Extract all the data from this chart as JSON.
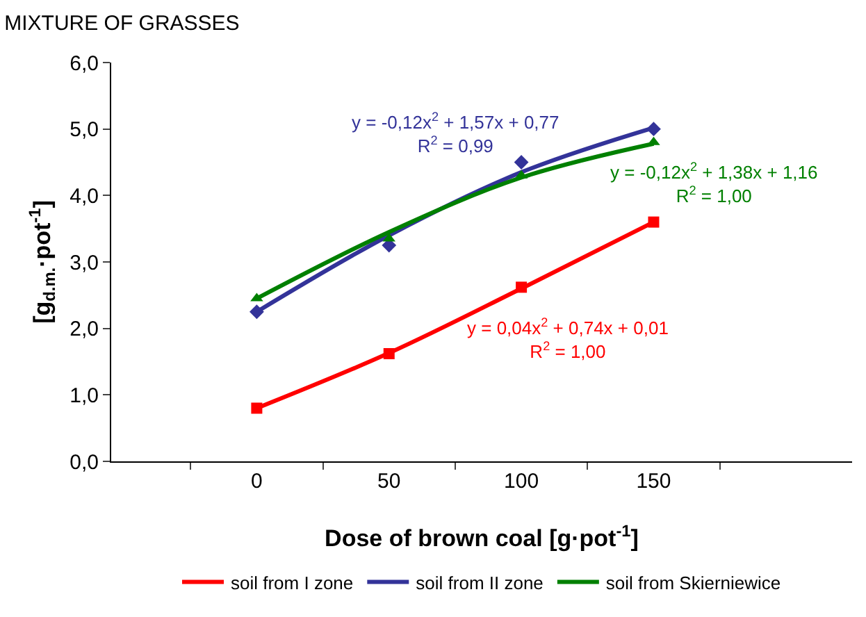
{
  "chart_data": {
    "type": "scatter",
    "title": "MIXTURE OF GRASSES",
    "xlabel": "Dose of brown coal [g·pot$^{-1}$]",
    "ylabel": "[g$_{d.m.}$·pot$^{-1}$]",
    "categories": [
      "0",
      "50",
      "100",
      "150"
    ],
    "series": [
      {
        "color": "#ff0000",
        "marker": "square",
        "values": [
          0.8,
          1.62,
          2.62,
          3.6
        ]
      },
      {
        "color": "#333399",
        "marker": "diamond",
        "values": [
          2.25,
          3.25,
          4.5,
          5.0
        ]
      },
      {
        "color": "#008000",
        "marker": "triangle",
        "values": [
          2.45,
          3.35,
          4.3,
          4.8
        ]
      },
      {
        "type": "line",
        "name": "soil from I zone",
        "color": "#ff0000",
        "marker": "none",
        "values": [
          0.8,
          1.63,
          2.6,
          3.6
        ]
      },
      {
        "type": "line",
        "name": "soil from II zone",
        "color": "#333399",
        "marker": "none",
        "values": [
          2.25,
          3.4,
          4.35,
          5.02
        ]
      },
      {
        "type": "line",
        "name": "soil from Skierniewice",
        "color": "#008000",
        "marker": "none",
        "values": [
          2.45,
          3.45,
          4.27,
          4.78
        ]
      }
    ],
    "ylim": [
      0,
      6
    ],
    "yticks": [
      {
        "value": 0,
        "label": "0,0"
      },
      {
        "value": 1,
        "label": "1,0"
      },
      {
        "value": 2,
        "label": "2,0"
      },
      {
        "value": 3,
        "label": "3,0"
      },
      {
        "value": 4,
        "label": "4,0"
      },
      {
        "value": 5,
        "label": "5,0"
      },
      {
        "value": 6,
        "label": "6,0"
      }
    ],
    "annotations": [
      "y = -0,12x$^{2}$ + 1,57x + 0,77\nR$^{2}$ = 0,99",
      "y = -0,12x$^{2}$ + 1,38x + 1,16\nR$^{2}$ = 1,00",
      "y = 0,04x$^{2}$ + 0,74x + 0,01\nR$^{2}$ = 1,00"
    ],
    "grid": false,
    "legend": "bottom",
    "line_style": "solid"
  }
}
